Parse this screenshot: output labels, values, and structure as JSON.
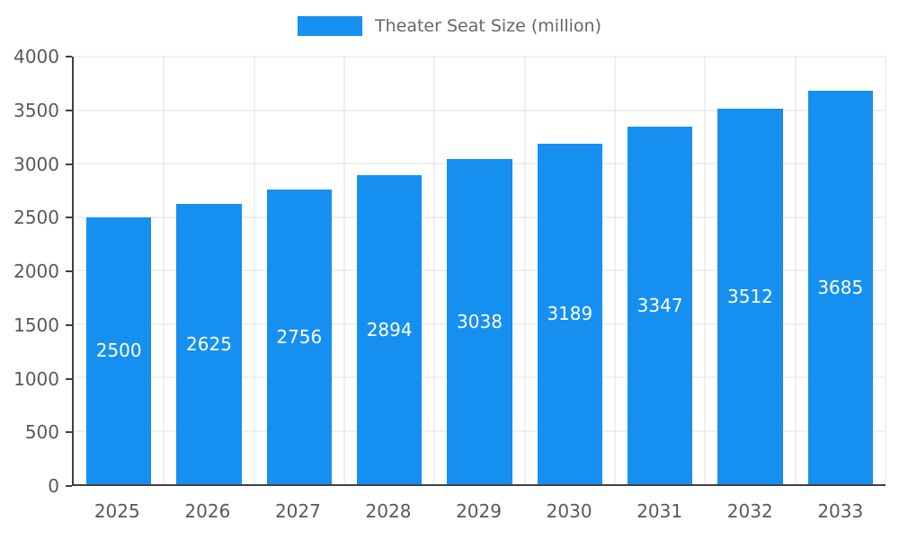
{
  "legend": {
    "label": "Theater Seat Size (million)"
  },
  "colors": {
    "bar": "#1690f0",
    "grid": "#e0e0e0",
    "axis": "#404040",
    "tick_text": "#595959",
    "legend_text": "#666666",
    "bar_value_text": "#ffffff",
    "background": "#ffffff"
  },
  "chart_data": {
    "type": "bar",
    "title": "Theater Seat Size (million)",
    "categories": [
      "2025",
      "2026",
      "2027",
      "2028",
      "2029",
      "2030",
      "2031",
      "2032",
      "2033"
    ],
    "values": [
      2500,
      2625,
      2756,
      2894,
      3038,
      3189,
      3347,
      3512,
      3685
    ],
    "xlabel": "",
    "ylabel": "",
    "ylim": [
      0,
      4000
    ],
    "yticks": [
      0,
      500,
      1000,
      1500,
      2000,
      2500,
      3000,
      3500,
      4000
    ],
    "grid": true,
    "legend_position": "top",
    "value_labels": "inside-center"
  }
}
